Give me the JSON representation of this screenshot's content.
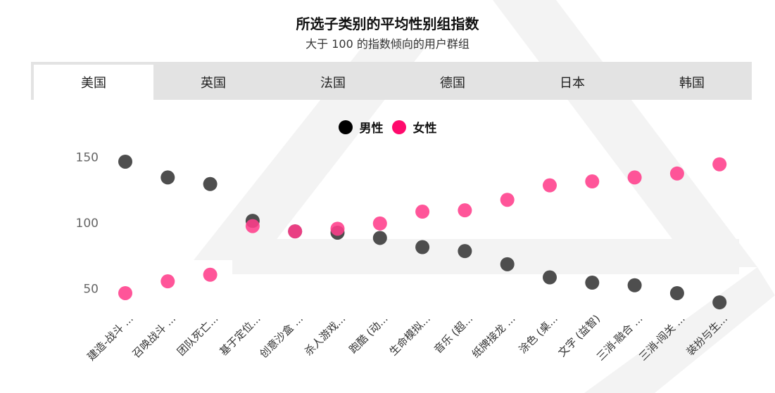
{
  "header": {
    "title": "所选子类别的平均性别组指数",
    "subtitle": "大于 100 的指数倾向的用户群组"
  },
  "tabs": [
    {
      "label": "美国",
      "active": true
    },
    {
      "label": "英国",
      "active": false
    },
    {
      "label": "法国",
      "active": false
    },
    {
      "label": "德国",
      "active": false
    },
    {
      "label": "日本",
      "active": false
    },
    {
      "label": "韩国",
      "active": false
    }
  ],
  "legend": {
    "male_label": "男性",
    "female_label": "女性"
  },
  "colors": {
    "male": "#444444",
    "female": "#ff3d8b",
    "tab_bar": "#e3e3e3",
    "watermark": "#f2f2f2"
  },
  "chart_data": {
    "type": "scatter",
    "categories": [
      "建造-战斗 ...",
      "召唤战斗 ...",
      "团队死亡...",
      "基于定位...",
      "创意沙盒 ...",
      "杀人游戏...",
      "跑酷 (动...",
      "生命模拟...",
      "音乐 (超...",
      "纸牌接龙 ...",
      "涂色 (桌...",
      "文字 (益智)",
      "三消-融合 ...",
      "三消-闯关 ...",
      "装扮与生..."
    ],
    "series": [
      {
        "name": "男性",
        "values": [
          146,
          134,
          129,
          101,
          93,
          92,
          88,
          81,
          78,
          68,
          58,
          54,
          52,
          46,
          39
        ]
      },
      {
        "name": "女性",
        "values": [
          46,
          55,
          60,
          97,
          93,
          95,
          99,
          108,
          109,
          117,
          128,
          131,
          134,
          137,
          144
        ]
      }
    ],
    "yticks": [
      50,
      100,
      150
    ],
    "ylim": [
      30,
      160
    ],
    "grid": false,
    "legend_position": "top-center"
  }
}
